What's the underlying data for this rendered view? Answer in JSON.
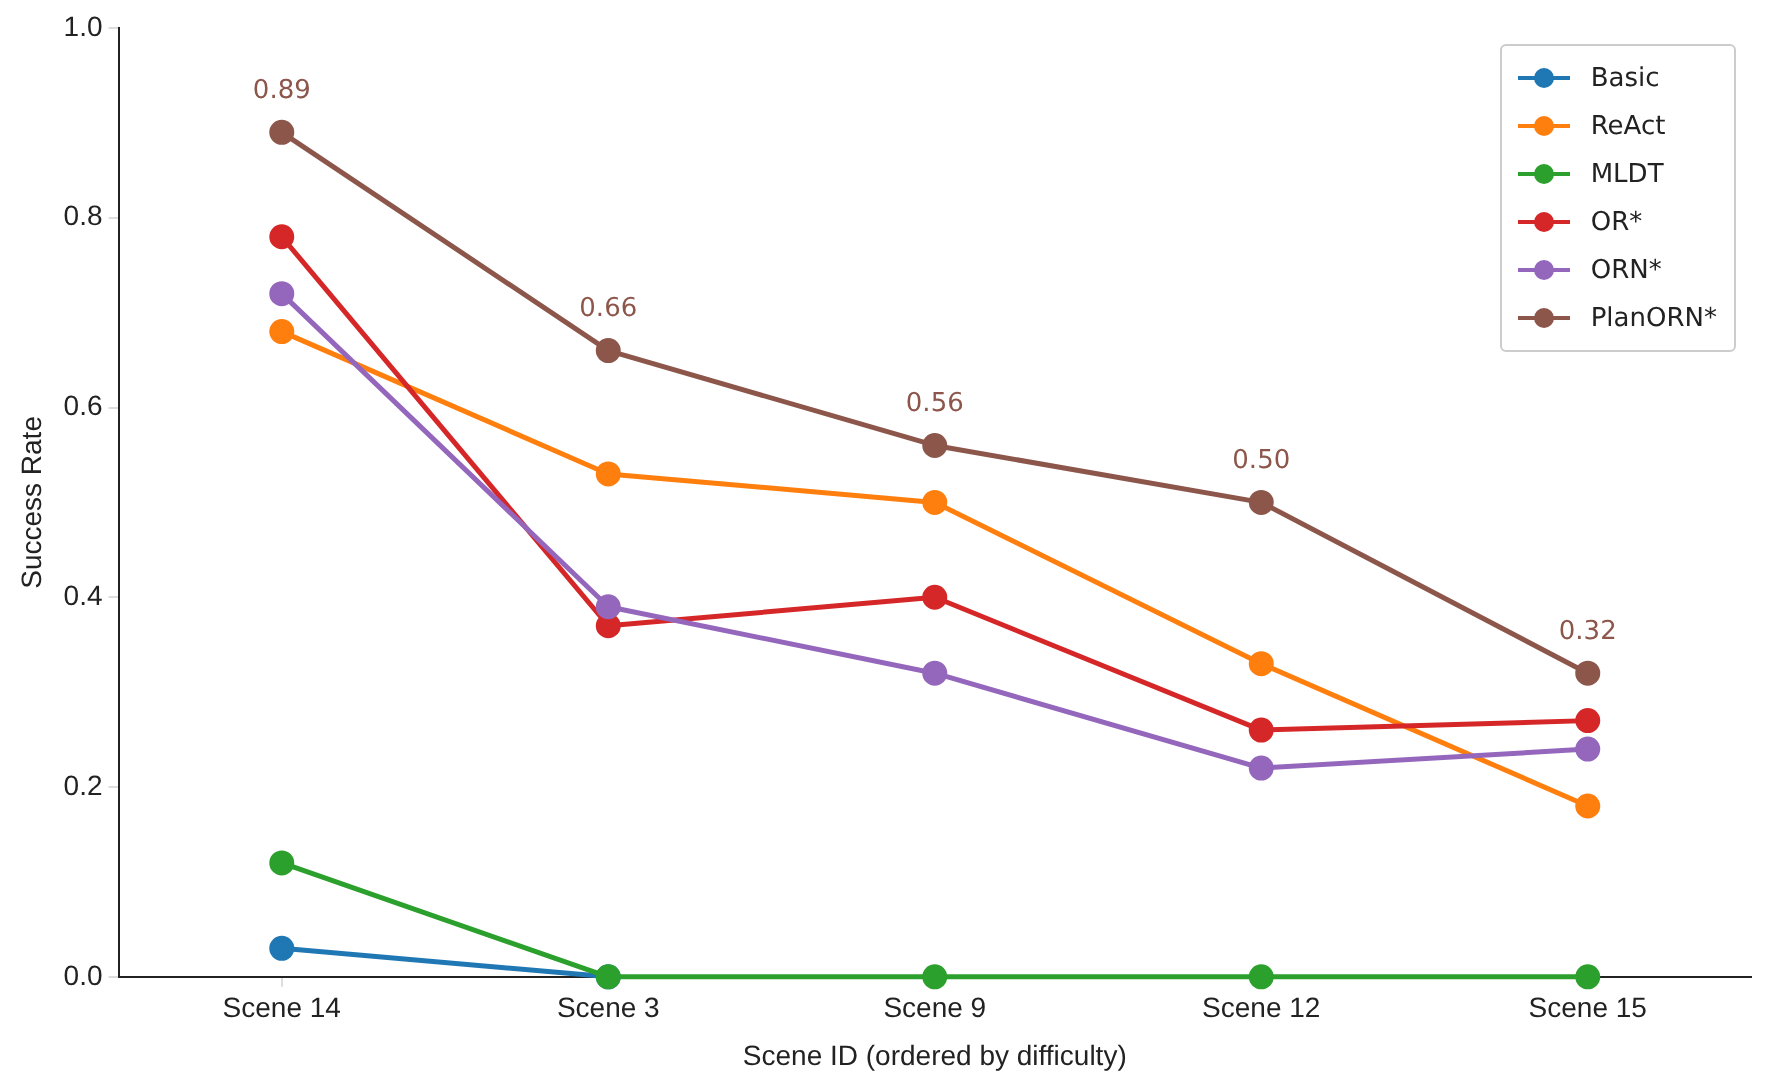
{
  "chart_data": {
    "type": "line",
    "xlabel": "Scene ID (ordered by difficulty)",
    "ylabel": "Success Rate",
    "categories": [
      "Scene 14",
      "Scene 3",
      "Scene 9",
      "Scene 12",
      "Scene 15"
    ],
    "series": [
      {
        "name": "Basic",
        "color": "#1f77b4",
        "values": [
          0.03,
          0,
          null,
          null,
          null
        ]
      },
      {
        "name": "ReAct",
        "color": "#ff7f0e",
        "values": [
          0.68,
          0.53,
          0.5,
          0.33,
          0.18
        ]
      },
      {
        "name": "MLDT",
        "color": "#2ca02c",
        "values": [
          0.12,
          0,
          0,
          0,
          0
        ]
      },
      {
        "name": "OR*",
        "color": "#d62728",
        "values": [
          0.78,
          0.37,
          0.4,
          0.26,
          0.27
        ]
      },
      {
        "name": "ORN*",
        "color": "#9467bd",
        "values": [
          0.72,
          0.39,
          0.32,
          0.22,
          0.24
        ]
      },
      {
        "name": "PlanORN*",
        "color": "#8c564b",
        "values": [
          0.89,
          0.66,
          0.56,
          0.5,
          0.32
        ],
        "value_labels": [
          "0.89",
          "0.66",
          "0.56",
          "0.50",
          "0.32"
        ]
      }
    ],
    "ylim": [
      0,
      1
    ],
    "yticks": [
      {
        "value": 0,
        "label": "0.0"
      },
      {
        "value": 0.2,
        "label": "0.2"
      },
      {
        "value": 0.4,
        "label": "0.4"
      },
      {
        "value": 0.6,
        "label": "0.6"
      },
      {
        "value": 0.8,
        "label": "0.8"
      },
      {
        "value": 1,
        "label": "1.0"
      }
    ],
    "grid": false,
    "legend": "top right",
    "marker": "circle",
    "line_style": "solid"
  }
}
